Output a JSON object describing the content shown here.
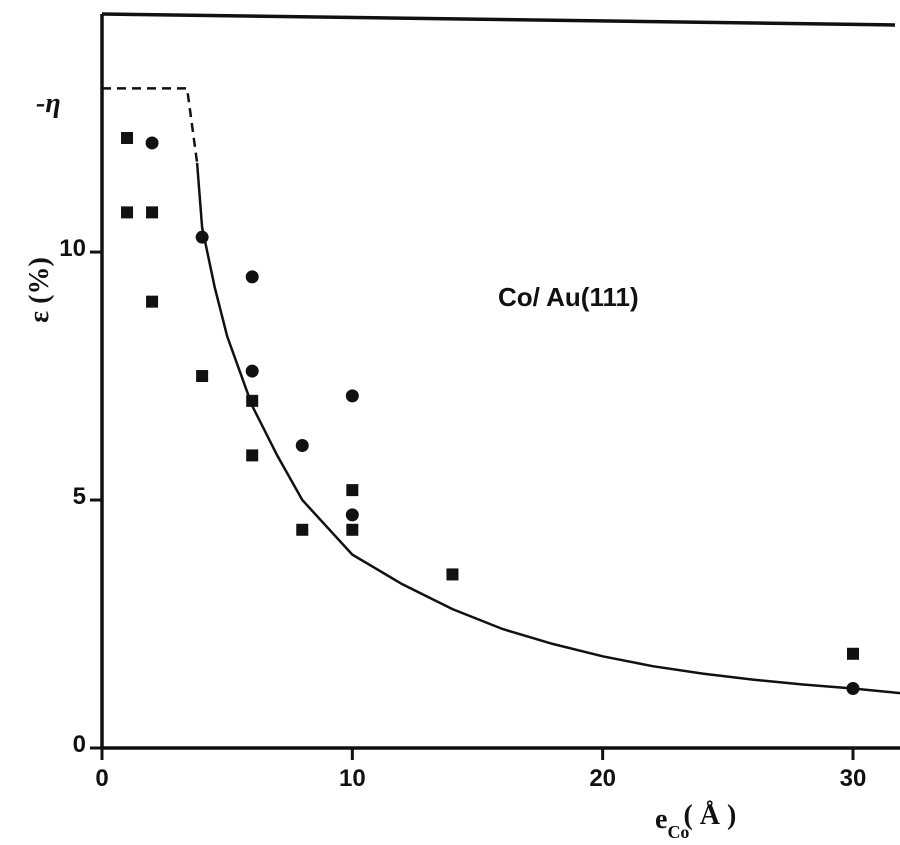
{
  "chart_data": {
    "type": "scatter",
    "title": "",
    "annotation": "Co/ Au(111)",
    "xlabel": {
      "main": "e",
      "sub": "Co",
      "unit": "( Å )"
    },
    "ylabel": "ε (%)",
    "xlim": [
      0,
      32
    ],
    "ylim": [
      0,
      14.8
    ],
    "xticks": [
      0,
      10,
      20,
      30
    ],
    "yticks": [
      0,
      5,
      10
    ],
    "eta_level": 13.3,
    "eta_label": "-η",
    "grid": false,
    "series": [
      {
        "marker": "square",
        "points": [
          [
            1,
            12.3
          ],
          [
            1,
            10.8
          ],
          [
            2,
            10.8
          ],
          [
            2,
            9.0
          ],
          [
            4,
            7.5
          ],
          [
            6,
            7.0
          ],
          [
            6,
            5.9
          ],
          [
            8,
            4.4
          ],
          [
            10,
            5.2
          ],
          [
            10,
            4.4
          ],
          [
            14,
            3.5
          ],
          [
            30,
            1.9
          ]
        ]
      },
      {
        "marker": "circle",
        "points": [
          [
            2,
            12.2
          ],
          [
            4,
            10.3
          ],
          [
            6,
            9.5
          ],
          [
            6,
            7.6
          ],
          [
            8,
            6.1
          ],
          [
            10,
            7.1
          ],
          [
            10,
            4.7
          ],
          [
            30,
            1.2
          ]
        ]
      }
    ],
    "fit_curve": {
      "style": "solid",
      "dashed_points": [
        [
          0,
          13.3
        ],
        [
          3.4,
          13.3
        ],
        [
          3.8,
          11.8
        ]
      ],
      "points": [
        [
          3.8,
          11.8
        ],
        [
          4,
          10.5
        ],
        [
          4.5,
          9.3
        ],
        [
          5,
          8.3
        ],
        [
          6,
          6.9
        ],
        [
          7,
          5.9
        ],
        [
          8,
          5.0
        ],
        [
          10,
          3.9
        ],
        [
          12,
          3.3
        ],
        [
          14,
          2.8
        ],
        [
          16,
          2.4
        ],
        [
          18,
          2.1
        ],
        [
          20,
          1.85
        ],
        [
          22,
          1.65
        ],
        [
          24,
          1.5
        ],
        [
          26,
          1.38
        ],
        [
          28,
          1.28
        ],
        [
          30,
          1.2
        ],
        [
          32,
          1.1
        ]
      ]
    }
  }
}
